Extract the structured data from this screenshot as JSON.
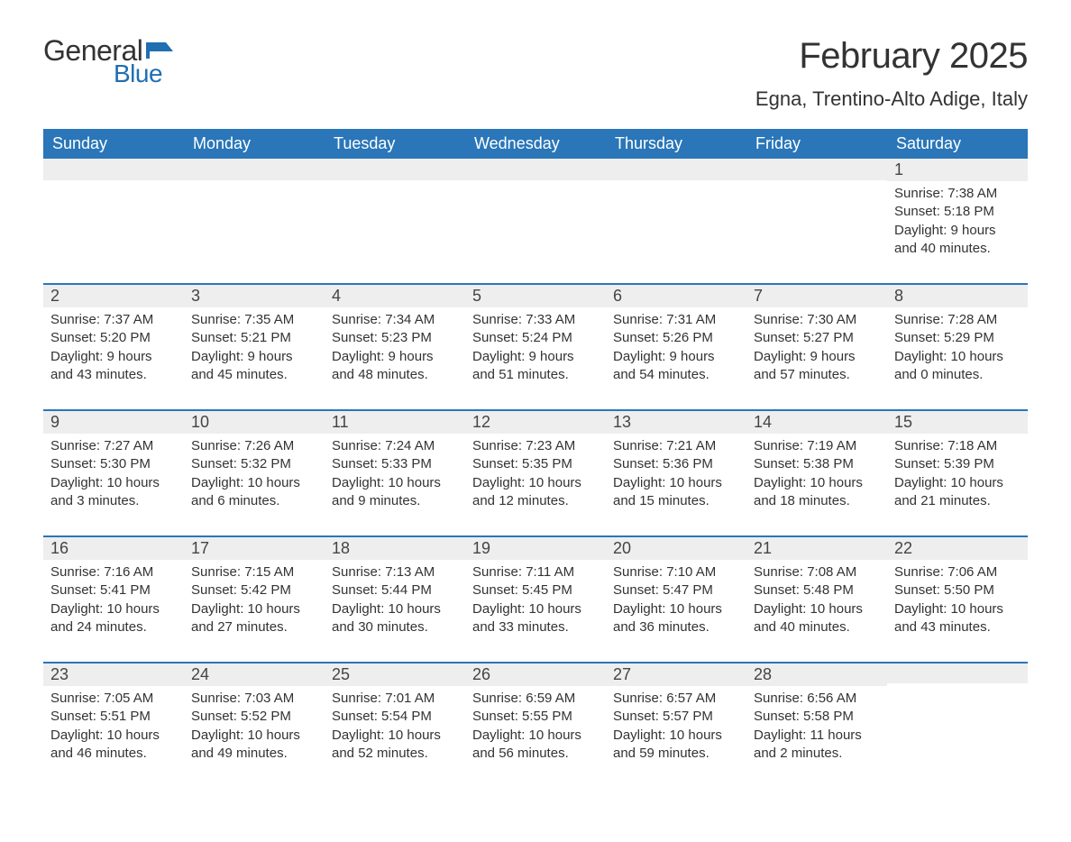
{
  "logo": {
    "text1": "General",
    "text2": "Blue",
    "flag_color": "#1f6fb2"
  },
  "title": "February 2025",
  "location": "Egna, Trentino-Alto Adige, Italy",
  "colors": {
    "header_bg": "#2a76b8",
    "header_text": "#ffffff",
    "daybar_bg": "#eeeeee",
    "daybar_border": "#2a76b8",
    "body_text": "#333333",
    "background": "#ffffff"
  },
  "fonts": {
    "title_pt": 40,
    "location_pt": 22,
    "weekday_pt": 18,
    "daynum_pt": 18,
    "body_pt": 15
  },
  "weekdays": [
    "Sunday",
    "Monday",
    "Tuesday",
    "Wednesday",
    "Thursday",
    "Friday",
    "Saturday"
  ],
  "weeks": [
    [
      null,
      null,
      null,
      null,
      null,
      null,
      {
        "n": "1",
        "sunrise": "Sunrise: 7:38 AM",
        "sunset": "Sunset: 5:18 PM",
        "daylight": "Daylight: 9 hours and 40 minutes."
      }
    ],
    [
      {
        "n": "2",
        "sunrise": "Sunrise: 7:37 AM",
        "sunset": "Sunset: 5:20 PM",
        "daylight": "Daylight: 9 hours and 43 minutes."
      },
      {
        "n": "3",
        "sunrise": "Sunrise: 7:35 AM",
        "sunset": "Sunset: 5:21 PM",
        "daylight": "Daylight: 9 hours and 45 minutes."
      },
      {
        "n": "4",
        "sunrise": "Sunrise: 7:34 AM",
        "sunset": "Sunset: 5:23 PM",
        "daylight": "Daylight: 9 hours and 48 minutes."
      },
      {
        "n": "5",
        "sunrise": "Sunrise: 7:33 AM",
        "sunset": "Sunset: 5:24 PM",
        "daylight": "Daylight: 9 hours and 51 minutes."
      },
      {
        "n": "6",
        "sunrise": "Sunrise: 7:31 AM",
        "sunset": "Sunset: 5:26 PM",
        "daylight": "Daylight: 9 hours and 54 minutes."
      },
      {
        "n": "7",
        "sunrise": "Sunrise: 7:30 AM",
        "sunset": "Sunset: 5:27 PM",
        "daylight": "Daylight: 9 hours and 57 minutes."
      },
      {
        "n": "8",
        "sunrise": "Sunrise: 7:28 AM",
        "sunset": "Sunset: 5:29 PM",
        "daylight": "Daylight: 10 hours and 0 minutes."
      }
    ],
    [
      {
        "n": "9",
        "sunrise": "Sunrise: 7:27 AM",
        "sunset": "Sunset: 5:30 PM",
        "daylight": "Daylight: 10 hours and 3 minutes."
      },
      {
        "n": "10",
        "sunrise": "Sunrise: 7:26 AM",
        "sunset": "Sunset: 5:32 PM",
        "daylight": "Daylight: 10 hours and 6 minutes."
      },
      {
        "n": "11",
        "sunrise": "Sunrise: 7:24 AM",
        "sunset": "Sunset: 5:33 PM",
        "daylight": "Daylight: 10 hours and 9 minutes."
      },
      {
        "n": "12",
        "sunrise": "Sunrise: 7:23 AM",
        "sunset": "Sunset: 5:35 PM",
        "daylight": "Daylight: 10 hours and 12 minutes."
      },
      {
        "n": "13",
        "sunrise": "Sunrise: 7:21 AM",
        "sunset": "Sunset: 5:36 PM",
        "daylight": "Daylight: 10 hours and 15 minutes."
      },
      {
        "n": "14",
        "sunrise": "Sunrise: 7:19 AM",
        "sunset": "Sunset: 5:38 PM",
        "daylight": "Daylight: 10 hours and 18 minutes."
      },
      {
        "n": "15",
        "sunrise": "Sunrise: 7:18 AM",
        "sunset": "Sunset: 5:39 PM",
        "daylight": "Daylight: 10 hours and 21 minutes."
      }
    ],
    [
      {
        "n": "16",
        "sunrise": "Sunrise: 7:16 AM",
        "sunset": "Sunset: 5:41 PM",
        "daylight": "Daylight: 10 hours and 24 minutes."
      },
      {
        "n": "17",
        "sunrise": "Sunrise: 7:15 AM",
        "sunset": "Sunset: 5:42 PM",
        "daylight": "Daylight: 10 hours and 27 minutes."
      },
      {
        "n": "18",
        "sunrise": "Sunrise: 7:13 AM",
        "sunset": "Sunset: 5:44 PM",
        "daylight": "Daylight: 10 hours and 30 minutes."
      },
      {
        "n": "19",
        "sunrise": "Sunrise: 7:11 AM",
        "sunset": "Sunset: 5:45 PM",
        "daylight": "Daylight: 10 hours and 33 minutes."
      },
      {
        "n": "20",
        "sunrise": "Sunrise: 7:10 AM",
        "sunset": "Sunset: 5:47 PM",
        "daylight": "Daylight: 10 hours and 36 minutes."
      },
      {
        "n": "21",
        "sunrise": "Sunrise: 7:08 AM",
        "sunset": "Sunset: 5:48 PM",
        "daylight": "Daylight: 10 hours and 40 minutes."
      },
      {
        "n": "22",
        "sunrise": "Sunrise: 7:06 AM",
        "sunset": "Sunset: 5:50 PM",
        "daylight": "Daylight: 10 hours and 43 minutes."
      }
    ],
    [
      {
        "n": "23",
        "sunrise": "Sunrise: 7:05 AM",
        "sunset": "Sunset: 5:51 PM",
        "daylight": "Daylight: 10 hours and 46 minutes."
      },
      {
        "n": "24",
        "sunrise": "Sunrise: 7:03 AM",
        "sunset": "Sunset: 5:52 PM",
        "daylight": "Daylight: 10 hours and 49 minutes."
      },
      {
        "n": "25",
        "sunrise": "Sunrise: 7:01 AM",
        "sunset": "Sunset: 5:54 PM",
        "daylight": "Daylight: 10 hours and 52 minutes."
      },
      {
        "n": "26",
        "sunrise": "Sunrise: 6:59 AM",
        "sunset": "Sunset: 5:55 PM",
        "daylight": "Daylight: 10 hours and 56 minutes."
      },
      {
        "n": "27",
        "sunrise": "Sunrise: 6:57 AM",
        "sunset": "Sunset: 5:57 PM",
        "daylight": "Daylight: 10 hours and 59 minutes."
      },
      {
        "n": "28",
        "sunrise": "Sunrise: 6:56 AM",
        "sunset": "Sunset: 5:58 PM",
        "daylight": "Daylight: 11 hours and 2 minutes."
      },
      null
    ]
  ]
}
